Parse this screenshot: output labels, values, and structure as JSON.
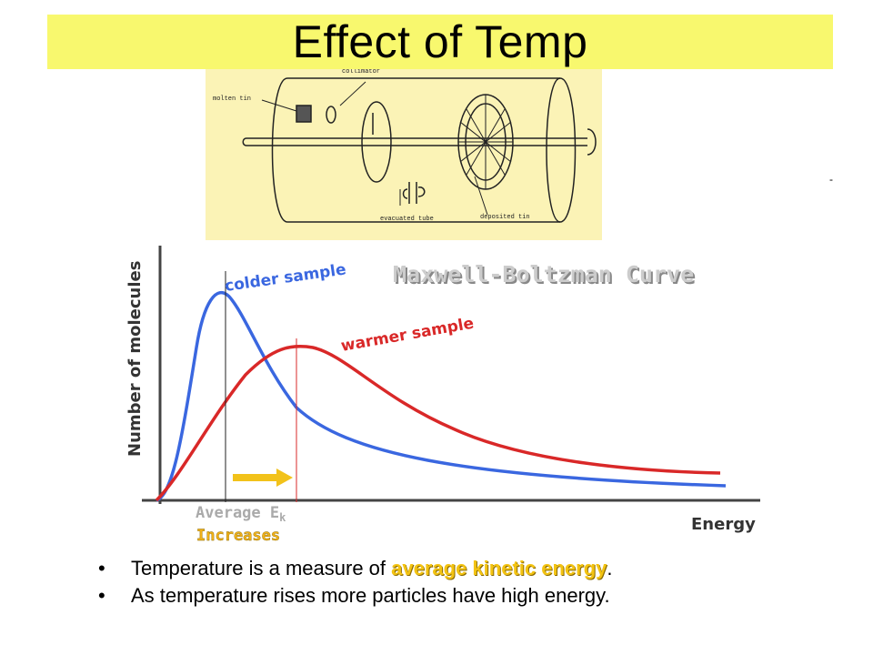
{
  "title": "Effect of Temp",
  "apparatus": {
    "labels": {
      "collimator": "collimator",
      "molten_tin": "molten tin",
      "evacuated_tube": "evacuated tube",
      "deposited_tin": "deposited tin"
    }
  },
  "dash": "-",
  "graph": {
    "title": "Maxwell-Boltzman Curve",
    "y_label": "Number of molecules",
    "x_label": "Energy",
    "colder_label": "colder sample",
    "warmer_label": "warmer sample",
    "avg_label_prefix": "Average E",
    "avg_label_sub": "k",
    "avg_label_line2": "Increases",
    "colors": {
      "colder": "#3a67e0",
      "warmer": "#d92828",
      "arrow": "#f2c21a",
      "title": "#cccccc"
    }
  },
  "bullets": {
    "b1_prefix": "Temperature is a measure of ",
    "b1_highlight": "average kinetic energy",
    "b1_suffix": ".",
    "b2": "As temperature rises more particles have high energy."
  }
}
